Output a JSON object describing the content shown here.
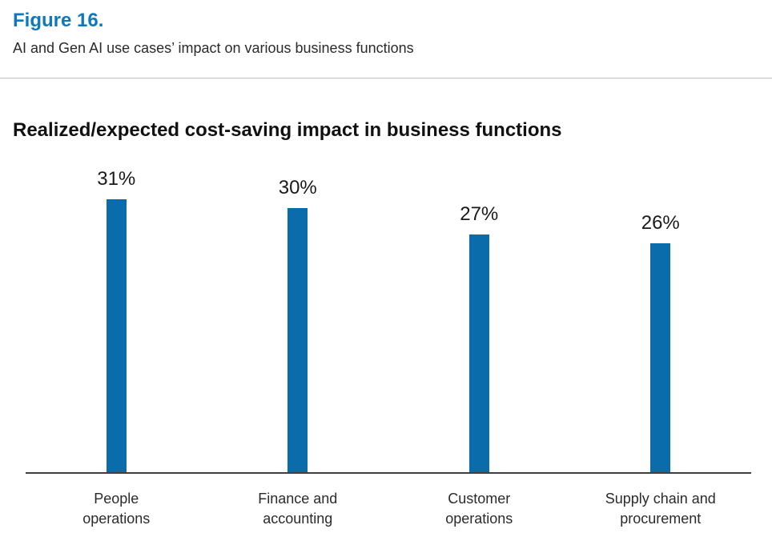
{
  "figure": {
    "label": "Figure 16.",
    "caption": "AI and Gen AI use cases’ impact on various business functions"
  },
  "colors": {
    "accent": "#0e78be",
    "bar": "#0a6cab",
    "axis": "#3f3f3f"
  },
  "chart_data": {
    "type": "bar",
    "title": "Realized/expected cost-saving impact in business functions",
    "categories": [
      "People\noperations",
      "Finance and\naccounting",
      "Customer\noperations",
      "Supply chain and\nprocurement"
    ],
    "values": [
      31,
      30,
      27,
      26
    ],
    "value_labels": [
      "31%",
      "30%",
      "27%",
      "26%"
    ],
    "unit": "percent",
    "xlabel": "",
    "ylabel": "",
    "ylim": [
      0,
      35
    ],
    "grid": false,
    "legend": "none",
    "y_axis_shown": false,
    "bar_color": "#0a6cab"
  }
}
